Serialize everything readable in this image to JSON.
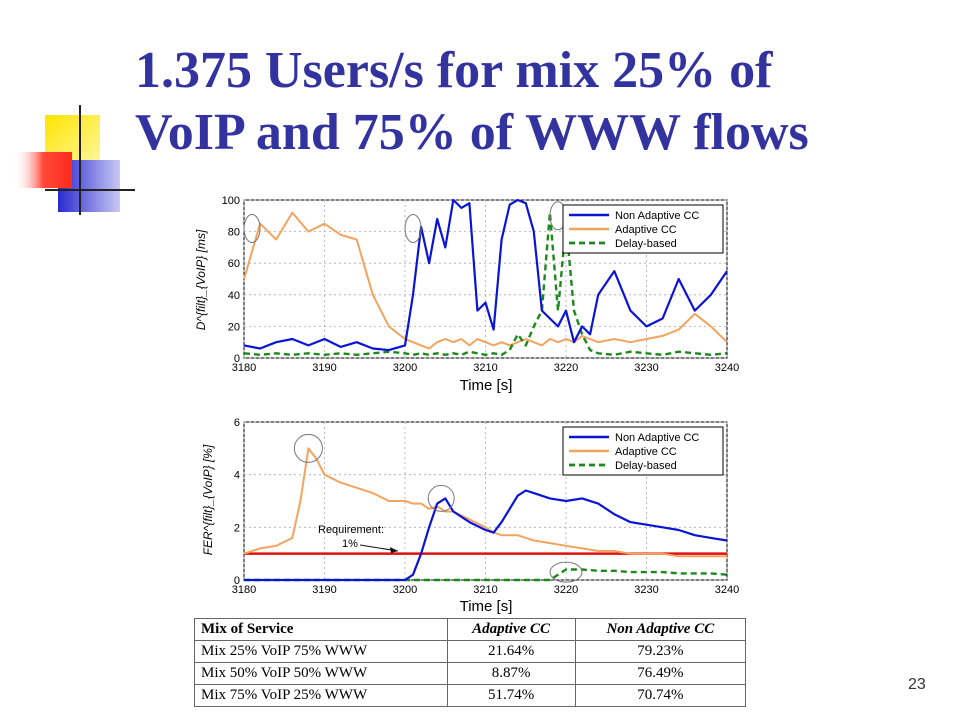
{
  "slide": {
    "title_line1": "1.375 Users/s for mix 25% of",
    "title_line2": "VoIP and 75% of WWW flows",
    "number": "23"
  },
  "colors": {
    "title": "#3333a0",
    "non_adaptive": "#0a14d4",
    "adaptive": "#f4a35e",
    "delay_based": "#1b8a1b",
    "requirement": "#e01010"
  },
  "chart_data": [
    {
      "type": "line",
      "title": "",
      "xlabel": "Time [s]",
      "ylabel": "D^{filt}_{VoIP} [ms]",
      "xlim": [
        3180,
        3240
      ],
      "ylim": [
        0,
        100
      ],
      "xticks": [
        "3180",
        "3190",
        "3200",
        "3210",
        "3220",
        "3230",
        "3240"
      ],
      "yticks": [
        "0",
        "20",
        "40",
        "60",
        "80",
        "100"
      ],
      "grid": true,
      "legend_position": "top-right",
      "x": [
        3180,
        3182,
        3184,
        3186,
        3188,
        3190,
        3192,
        3194,
        3196,
        3198,
        3200,
        3201,
        3202,
        3203,
        3204,
        3205,
        3206,
        3207,
        3208,
        3209,
        3210,
        3211,
        3212,
        3213,
        3214,
        3215,
        3216,
        3217,
        3218,
        3219,
        3220,
        3221,
        3222,
        3223,
        3224,
        3226,
        3228,
        3230,
        3232,
        3234,
        3236,
        3238,
        3240
      ],
      "series": [
        {
          "name": "Non Adaptive CC",
          "values": [
            8,
            6,
            10,
            12,
            8,
            12,
            7,
            10,
            6,
            5,
            8,
            40,
            83,
            60,
            88,
            70,
            100,
            95,
            98,
            30,
            35,
            18,
            75,
            97,
            100,
            98,
            80,
            30,
            25,
            20,
            30,
            10,
            20,
            15,
            40,
            55,
            30,
            20,
            25,
            50,
            30,
            40,
            55
          ]
        },
        {
          "name": "Adaptive CC",
          "values": [
            50,
            85,
            75,
            92,
            80,
            85,
            78,
            75,
            40,
            20,
            12,
            10,
            8,
            6,
            10,
            12,
            10,
            12,
            8,
            12,
            10,
            8,
            10,
            8,
            10,
            12,
            10,
            8,
            12,
            10,
            12,
            10,
            14,
            12,
            10,
            12,
            10,
            12,
            14,
            18,
            28,
            20,
            10
          ]
        },
        {
          "name": "Delay-based",
          "values": [
            3,
            2,
            3,
            2,
            3,
            2,
            3,
            2,
            3,
            4,
            3,
            2,
            3,
            2,
            3,
            2,
            3,
            2,
            4,
            3,
            2,
            3,
            2,
            5,
            15,
            8,
            20,
            30,
            92,
            30,
            85,
            30,
            15,
            5,
            3,
            2,
            4,
            3,
            2,
            4,
            3,
            2,
            3
          ]
        }
      ],
      "annotations": [
        "circle at 3181 s",
        "circle at 3201 s",
        "circle at 3219 s"
      ]
    },
    {
      "type": "line",
      "title": "",
      "xlabel": "Time [s]",
      "ylabel": "FER^{filt}_{VoIP} [%]",
      "xlim": [
        3180,
        3240
      ],
      "ylim": [
        0,
        6
      ],
      "xticks": [
        "3180",
        "3190",
        "3200",
        "3210",
        "3220",
        "3230",
        "3240"
      ],
      "yticks": [
        "0",
        "2",
        "4",
        "6"
      ],
      "grid": true,
      "legend_position": "top-right",
      "x": [
        3180,
        3182,
        3184,
        3186,
        3187,
        3188,
        3189,
        3190,
        3192,
        3194,
        3196,
        3198,
        3199,
        3200,
        3201,
        3202,
        3203,
        3204,
        3205,
        3206,
        3208,
        3210,
        3211,
        3212,
        3214,
        3215,
        3216,
        3218,
        3220,
        3222,
        3224,
        3226,
        3228,
        3230,
        3232,
        3234,
        3236,
        3238,
        3240
      ],
      "series": [
        {
          "name": "Non Adaptive CC",
          "values": [
            0,
            0,
            0,
            0,
            0,
            0,
            0,
            0,
            0,
            0,
            0,
            0,
            0,
            0,
            0.2,
            1.0,
            2.0,
            2.9,
            3.1,
            2.6,
            2.2,
            1.9,
            1.8,
            2.2,
            3.2,
            3.4,
            3.3,
            3.1,
            3.0,
            3.1,
            2.9,
            2.5,
            2.2,
            2.1,
            2.0,
            1.9,
            1.7,
            1.6,
            1.5
          ]
        },
        {
          "name": "Adaptive CC",
          "values": [
            1.0,
            1.2,
            1.3,
            1.6,
            3.0,
            5.0,
            4.6,
            4.0,
            3.7,
            3.5,
            3.3,
            3.0,
            3.0,
            3.0,
            2.9,
            2.9,
            2.7,
            2.8,
            2.6,
            2.6,
            2.3,
            2.0,
            1.8,
            1.7,
            1.7,
            1.6,
            1.5,
            1.4,
            1.3,
            1.2,
            1.1,
            1.1,
            1.0,
            1.0,
            1.0,
            0.9,
            0.9,
            0.9,
            0.9
          ]
        },
        {
          "name": "Delay-based",
          "values": [
            0,
            0,
            0,
            0,
            0,
            0,
            0,
            0,
            0,
            0,
            0,
            0,
            0,
            0,
            0,
            0,
            0,
            0,
            0,
            0,
            0,
            0,
            0,
            0,
            0,
            0,
            0,
            0,
            0.4,
            0.4,
            0.35,
            0.35,
            0.3,
            0.3,
            0.3,
            0.25,
            0.25,
            0.25,
            0.2
          ]
        }
      ],
      "requirement": {
        "label_line1": "Requirement:",
        "label_line2": "1%",
        "value": 1
      },
      "annotations": [
        "circle at peak 3188 s",
        "circle at 3204 s",
        "ellipse at 3220 s"
      ]
    },
    {
      "type": "table",
      "columns": [
        "Mix of Service",
        "Adaptive CC",
        "Non Adaptive CC"
      ],
      "rows": [
        [
          "Mix 25% VoIP 75% WWW",
          "21.64%",
          "79.23%"
        ],
        [
          "Mix 50% VoIP 50% WWW",
          "8.87%",
          "76.49%"
        ],
        [
          "Mix 75% VoIP 25% WWW",
          "51.74%",
          "70.74%"
        ]
      ]
    }
  ]
}
